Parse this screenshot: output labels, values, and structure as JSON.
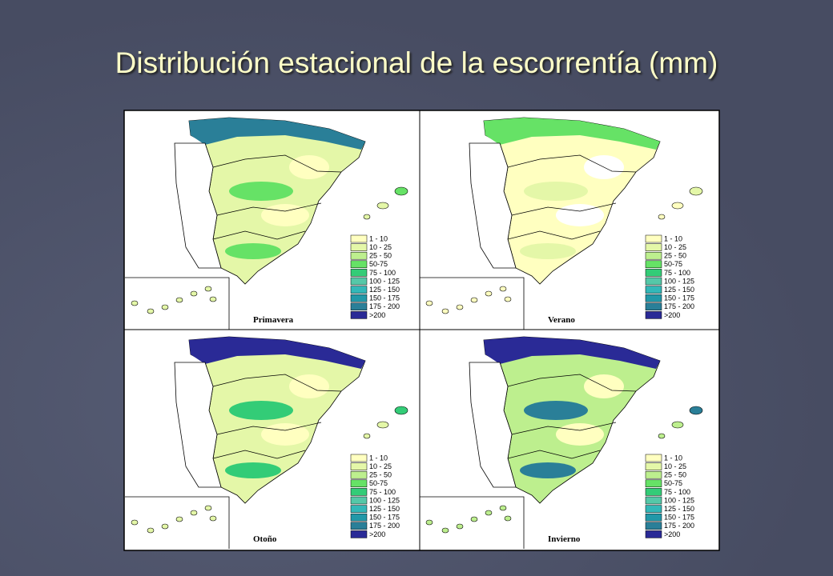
{
  "title": "Distribución estacional de la escorrentía (mm)",
  "panels": [
    {
      "label": "Primavera"
    },
    {
      "label": "Verano"
    },
    {
      "label": "Otoño"
    },
    {
      "label": "Invierno"
    }
  ],
  "legend": [
    {
      "label": "1 - 10",
      "color": "#ffffc0"
    },
    {
      "label": "10 - 25",
      "color": "#e4f7a8"
    },
    {
      "label": "25 - 50",
      "color": "#bdef8e"
    },
    {
      "label": "50-75",
      "color": "#66e266"
    },
    {
      "label": "75 - 100",
      "color": "#33cc77"
    },
    {
      "label": "100 - 125",
      "color": "#55c8a8"
    },
    {
      "label": "125 - 150",
      "color": "#33b8b8"
    },
    {
      "label": "150 - 175",
      "color": "#2298a8"
    },
    {
      "label": "175 - 200",
      "color": "#2a7f98"
    },
    {
      "label": ">200",
      "color": "#2a2a96"
    }
  ]
}
